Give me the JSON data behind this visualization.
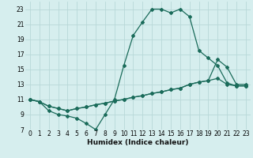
{
  "xlabel": "Humidex (Indice chaleur)",
  "bg_color": "#d6eeee",
  "grid_color": "#b8d8d8",
  "line_color": "#1a6b5a",
  "xlim": [
    -0.5,
    23.5
  ],
  "ylim": [
    7,
    24
  ],
  "xticks": [
    0,
    1,
    2,
    3,
    4,
    5,
    6,
    7,
    8,
    9,
    10,
    11,
    12,
    13,
    14,
    15,
    16,
    17,
    18,
    19,
    20,
    21,
    22,
    23
  ],
  "yticks": [
    7,
    9,
    11,
    13,
    15,
    17,
    19,
    21,
    23
  ],
  "line1_x": [
    0,
    1,
    2,
    3,
    4,
    5,
    6,
    7,
    8,
    9,
    10,
    11,
    12,
    13,
    14,
    15,
    16,
    17,
    18,
    19,
    20,
    21,
    22,
    23
  ],
  "line1_y": [
    11,
    10.7,
    9.5,
    9.0,
    8.8,
    8.5,
    7.8,
    7.0,
    9.0,
    11.0,
    15.5,
    19.5,
    21.3,
    23.0,
    23.0,
    22.5,
    23.0,
    22.0,
    17.5,
    16.5,
    15.5,
    13.2,
    12.8,
    12.8
  ],
  "line2_x": [
    0,
    1,
    2,
    3,
    4,
    5,
    6,
    7,
    8,
    9,
    10,
    11,
    12,
    13,
    14,
    15,
    16,
    17,
    18,
    19,
    20,
    21,
    22,
    23
  ],
  "line2_y": [
    11,
    10.7,
    10.1,
    9.8,
    9.5,
    9.8,
    10.0,
    10.3,
    10.5,
    10.8,
    11.0,
    11.3,
    11.5,
    11.8,
    12.0,
    12.3,
    12.5,
    13.0,
    13.3,
    13.5,
    16.3,
    15.3,
    13.0,
    13.0
  ],
  "line3_x": [
    0,
    1,
    2,
    3,
    4,
    5,
    6,
    7,
    8,
    9,
    10,
    11,
    12,
    13,
    14,
    15,
    16,
    17,
    18,
    19,
    20,
    21,
    22,
    23
  ],
  "line3_y": [
    11,
    10.7,
    10.1,
    9.8,
    9.5,
    9.8,
    10.0,
    10.3,
    10.5,
    10.8,
    11.0,
    11.3,
    11.5,
    11.8,
    12.0,
    12.3,
    12.5,
    13.0,
    13.3,
    13.5,
    13.8,
    13.0,
    12.8,
    12.8
  ]
}
